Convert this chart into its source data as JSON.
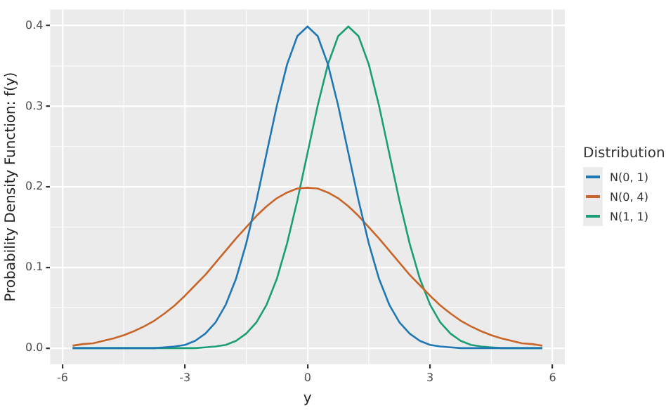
{
  "chart_data": {
    "type": "line",
    "xlabel": "y",
    "ylabel": "Probability Density Function: f(y)",
    "legend_title": "Distribution",
    "x": [
      -5.75,
      -5.5,
      -5.25,
      -5,
      -4.75,
      -4.5,
      -4.25,
      -4,
      -3.75,
      -3.5,
      -3.25,
      -3,
      -2.75,
      -2.5,
      -2.25,
      -2,
      -1.75,
      -1.5,
      -1.25,
      -1,
      -0.75,
      -0.5,
      -0.25,
      0,
      0.25,
      0.5,
      0.75,
      1,
      1.25,
      1.5,
      1.75,
      2,
      2.25,
      2.5,
      2.75,
      3,
      3.25,
      3.5,
      3.75,
      4,
      4.25,
      4.5,
      4.75,
      5,
      5.25,
      5.5,
      5.75
    ],
    "series": [
      {
        "name": "N(0, 1)",
        "color": "#1f78b4",
        "values": [
          0,
          0,
          0,
          0,
          0,
          0,
          0,
          0,
          0,
          0.001,
          0.002,
          0.004,
          0.009,
          0.018,
          0.032,
          0.054,
          0.086,
          0.13,
          0.183,
          0.242,
          0.301,
          0.352,
          0.387,
          0.399,
          0.387,
          0.352,
          0.301,
          0.242,
          0.183,
          0.13,
          0.086,
          0.054,
          0.032,
          0.018,
          0.009,
          0.004,
          0.002,
          0.001,
          0,
          0,
          0,
          0,
          0,
          0,
          0,
          0,
          0
        ]
      },
      {
        "name": "N(0, 4)",
        "color": "#c8662a",
        "values": [
          0.003,
          0.005,
          0.006,
          0.009,
          0.012,
          0.016,
          0.021,
          0.027,
          0.034,
          0.043,
          0.053,
          0.065,
          0.078,
          0.091,
          0.106,
          0.121,
          0.136,
          0.15,
          0.164,
          0.176,
          0.186,
          0.193,
          0.198,
          0.199,
          0.198,
          0.193,
          0.186,
          0.176,
          0.164,
          0.15,
          0.136,
          0.121,
          0.106,
          0.091,
          0.078,
          0.065,
          0.053,
          0.043,
          0.034,
          0.027,
          0.021,
          0.016,
          0.012,
          0.009,
          0.006,
          0.005,
          0.003
        ]
      },
      {
        "name": "N(1, 1)",
        "color": "#1b9e77",
        "values": [
          0,
          0,
          0,
          0,
          0,
          0,
          0,
          0,
          0,
          0,
          0,
          0,
          0,
          0.001,
          0.002,
          0.004,
          0.009,
          0.018,
          0.032,
          0.054,
          0.086,
          0.13,
          0.183,
          0.242,
          0.301,
          0.352,
          0.387,
          0.399,
          0.387,
          0.352,
          0.301,
          0.242,
          0.183,
          0.13,
          0.086,
          0.054,
          0.032,
          0.018,
          0.009,
          0.004,
          0.002,
          0.001,
          0,
          0,
          0,
          0,
          0
        ]
      }
    ],
    "xlim": [
      -6.3,
      6.3
    ],
    "xticks": [
      -6,
      -3,
      0,
      3,
      6
    ],
    "ylim": [
      -0.02,
      0.42
    ],
    "yticks": [
      {
        "value": 0,
        "label": "0.0"
      },
      {
        "value": 0.1,
        "label": "0.1"
      },
      {
        "value": 0.2,
        "label": "0.2"
      },
      {
        "value": 0.3,
        "label": "0.3"
      },
      {
        "value": 0.4,
        "label": "0.4"
      }
    ],
    "grid": true,
    "legend": "right",
    "marker": "none",
    "line_style": "solid"
  }
}
